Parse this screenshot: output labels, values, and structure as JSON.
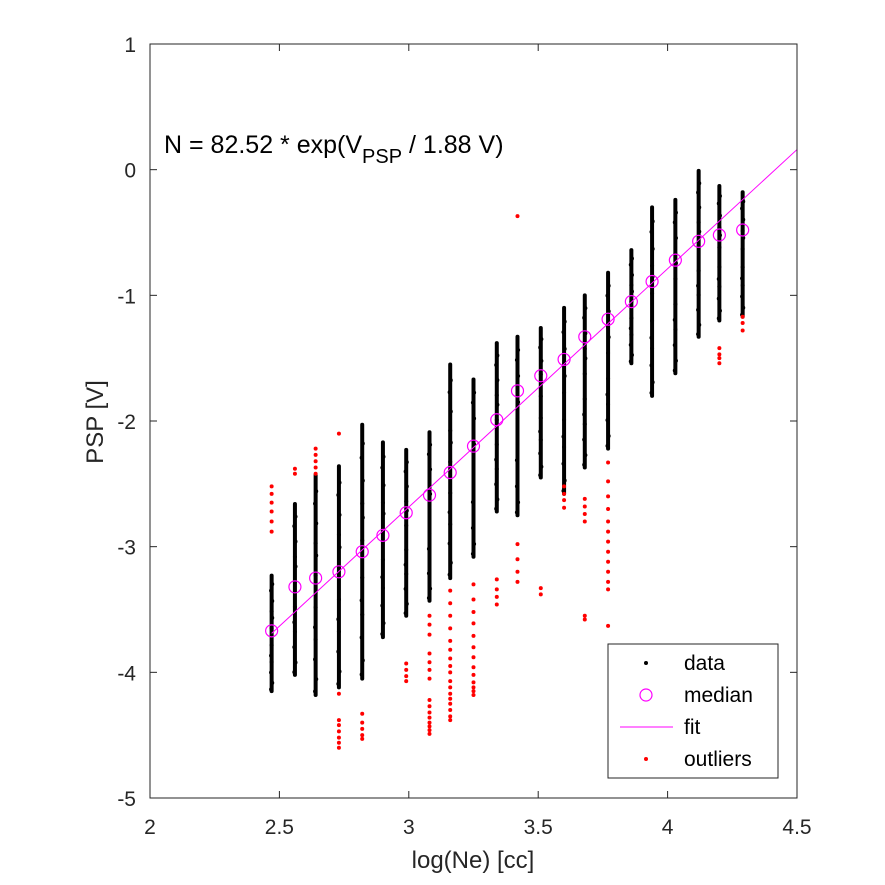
{
  "chart_data": {
    "type": "scatter",
    "xlabel": "log(Ne) [cc]",
    "ylabel": "PSP [V]",
    "xlim": [
      2,
      4.5
    ],
    "ylim": [
      -5,
      1
    ],
    "xticks": [
      "2",
      "2.5",
      "3",
      "3.5",
      "4",
      "4.5"
    ],
    "yticks": [
      "1",
      "0",
      "-1",
      "-2",
      "-3",
      "-4",
      "-5"
    ],
    "annotation": {
      "prefix": "N = 82.52 * exp(V",
      "subscript": "PSP",
      "suffix": " / 1.88 V)"
    },
    "fit": {
      "x": [
        2.47,
        4.5
      ],
      "y": [
        -3.69,
        0.16
      ]
    },
    "median": {
      "x": [
        2.47,
        2.56,
        2.64,
        2.73,
        2.82,
        2.9,
        2.99,
        3.08,
        3.16,
        3.25,
        3.34,
        3.42,
        3.51,
        3.6,
        3.68,
        3.77,
        3.86,
        3.94,
        4.03,
        4.12,
        4.2,
        4.29
      ],
      "y": [
        -3.67,
        -3.32,
        -3.25,
        -3.2,
        -3.04,
        -2.91,
        -2.73,
        -2.59,
        -2.41,
        -2.2,
        -1.99,
        -1.76,
        -1.64,
        -1.51,
        -1.33,
        -1.19,
        -1.05,
        -0.89,
        -0.72,
        -0.57,
        -0.52,
        -0.48
      ]
    },
    "data_ranges": {
      "x": [
        2.47,
        2.56,
        2.64,
        2.73,
        2.82,
        2.9,
        2.99,
        3.08,
        3.16,
        3.25,
        3.34,
        3.42,
        3.51,
        3.6,
        3.68,
        3.77,
        3.86,
        3.94,
        4.03,
        4.12,
        4.2,
        4.29
      ],
      "ymin": [
        -4.15,
        -4.02,
        -4.18,
        -4.12,
        -4.05,
        -3.72,
        -3.55,
        -3.43,
        -3.25,
        -3.08,
        -2.72,
        -2.75,
        -2.45,
        -2.58,
        -2.37,
        -2.22,
        -1.54,
        -1.8,
        -1.62,
        -1.33,
        -1.2,
        -1.17
      ],
      "ymax": [
        -3.23,
        -2.66,
        -2.43,
        -2.36,
        -2.03,
        -2.17,
        -2.23,
        -2.09,
        -1.55,
        -1.67,
        -1.38,
        -1.33,
        -1.26,
        -1.1,
        -1.0,
        -0.82,
        -0.64,
        -0.3,
        -0.24,
        -0.01,
        -0.13,
        -0.18
      ]
    },
    "outliers": {
      "x": [
        2.47,
        2.47,
        2.47,
        2.47,
        2.47,
        2.47,
        2.56,
        2.56,
        2.64,
        2.64,
        2.64,
        2.64,
        2.64,
        2.73,
        2.73,
        2.73,
        2.73,
        2.73,
        2.73,
        2.73,
        2.73,
        2.82,
        2.82,
        2.82,
        2.82,
        2.82,
        2.99,
        2.99,
        2.99,
        2.99,
        3.08,
        3.08,
        3.08,
        3.08,
        3.08,
        3.08,
        3.08,
        3.08,
        3.08,
        3.08,
        3.08,
        3.08,
        3.08,
        3.08,
        3.08,
        3.16,
        3.16,
        3.16,
        3.16,
        3.16,
        3.16,
        3.16,
        3.16,
        3.16,
        3.16,
        3.16,
        3.16,
        3.16,
        3.16,
        3.16,
        3.16,
        3.16,
        3.25,
        3.25,
        3.25,
        3.25,
        3.25,
        3.25,
        3.25,
        3.25,
        3.25,
        3.25,
        3.25,
        3.25,
        3.25,
        3.34,
        3.34,
        3.34,
        3.34,
        3.42,
        3.42,
        3.42,
        3.42,
        3.42,
        3.51,
        3.51,
        3.6,
        3.6,
        3.6,
        3.6,
        3.68,
        3.68,
        3.68,
        3.68,
        3.68,
        3.68,
        3.77,
        3.77,
        3.77,
        3.77,
        3.77,
        3.77,
        3.77,
        3.77,
        3.77,
        3.77,
        3.77,
        3.77,
        3.77,
        4.2,
        4.2,
        4.2,
        4.2,
        4.29,
        4.29,
        4.29
      ],
      "y": [
        -2.52,
        -2.58,
        -2.65,
        -2.72,
        -2.8,
        -2.88,
        -2.38,
        -2.42,
        -2.22,
        -2.27,
        -2.32,
        -2.37,
        -2.42,
        -2.1,
        -4.17,
        -4.38,
        -4.42,
        -4.47,
        -4.52,
        -4.56,
        -4.6,
        -4.33,
        -4.4,
        -4.45,
        -4.5,
        -4.53,
        -3.93,
        -3.98,
        -4.03,
        -4.07,
        -3.55,
        -3.62,
        -3.7,
        -3.85,
        -3.92,
        -3.98,
        -4.05,
        -4.22,
        -4.27,
        -4.32,
        -4.36,
        -4.4,
        -4.43,
        -4.46,
        -4.49,
        -3.35,
        -3.45,
        -3.55,
        -3.65,
        -3.75,
        -3.82,
        -3.89,
        -3.95,
        -4.0,
        -4.07,
        -4.12,
        -4.17,
        -4.21,
        -4.25,
        -4.3,
        -4.35,
        -4.38,
        -3.3,
        -3.42,
        -3.52,
        -3.61,
        -3.71,
        -3.8,
        -3.88,
        -3.96,
        -4.02,
        -4.08,
        -4.12,
        -4.15,
        -4.18,
        -3.26,
        -3.34,
        -3.4,
        -3.46,
        -0.37,
        -2.98,
        -3.1,
        -3.2,
        -3.28,
        -3.33,
        -3.38,
        -2.52,
        -2.58,
        -2.63,
        -2.69,
        -2.62,
        -2.68,
        -2.74,
        -2.8,
        -3.55,
        -3.58,
        -2.33,
        -2.48,
        -2.6,
        -2.7,
        -2.8,
        -2.88,
        -2.96,
        -3.04,
        -3.12,
        -3.2,
        -3.28,
        -3.34,
        -3.63,
        -1.42,
        -1.47,
        -1.5,
        -1.54,
        -1.17,
        -1.22,
        -1.28
      ]
    },
    "legend": {
      "position": "bottom-right",
      "entries": [
        "data",
        "median",
        "fit",
        "outliers"
      ]
    },
    "colors": {
      "data": "#000000",
      "median": "#ff00ff",
      "fit": "#ff00ff",
      "outliers": "#ff0000",
      "axes": "#262626"
    }
  }
}
